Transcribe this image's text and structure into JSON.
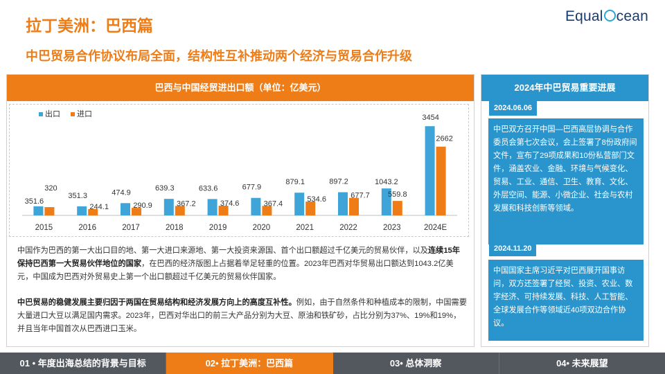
{
  "header": {
    "title": "拉丁美洲：巴西篇",
    "subtitle": "中巴贸易合作协议布局全面，结构性互补推动两个经济与贸易合作升级",
    "logo_part1": "Equal",
    "logo_part2": "cean"
  },
  "chart_panel": {
    "header": "巴西与中国经贸进出口额（单位：亿美元）"
  },
  "chart_data": {
    "type": "bar",
    "title": "巴西与中国经贸进出口额（单位：亿美元）",
    "categories": [
      "2015",
      "2016",
      "2017",
      "2018",
      "2019",
      "2020",
      "2021",
      "2022",
      "2023",
      "2024E"
    ],
    "series": [
      {
        "name": "出口",
        "color": "#3fa4d8",
        "values": [
          351.6,
          351.3,
          474.9,
          639.3,
          633.6,
          677.9,
          879.1,
          897.2,
          1043.2,
          3454
        ]
      },
      {
        "name": "进口",
        "color": "#ee7d17",
        "values": [
          320,
          244.1,
          290.9,
          367.2,
          374.6,
          367.4,
          534.6,
          677.7,
          559.8,
          2662
        ]
      }
    ],
    "labels": {
      "export": [
        "351.6",
        "351.3",
        "474.9",
        "639.3",
        "633.6",
        "677.9",
        "879.1",
        "897.2",
        "1043.2",
        "3454"
      ],
      "import": [
        "320",
        "244.1",
        "290.9",
        "367.2",
        "374.6",
        "367.4",
        "534.6",
        "677.7",
        "559.8",
        "2662"
      ]
    },
    "legend_position": "top-left",
    "ylim": [
      0,
      3700
    ],
    "grid": false
  },
  "paragraphs": {
    "p1_a": "中国作为巴西的第一大出口目的地、第一大进口来源地、第一大投资来源国、首个出口额超过千亿美元的贸易伙伴，以及",
    "p1_b": "连续15年保持巴西第一大贸易伙伴地位的国家",
    "p1_c": "，在巴西的经济版图上占据着举足轻重的位置。2023年巴西对华贸易出口额达到1043.2亿美元，中国成为巴西对外贸易史上第一个出口额超过千亿美元的贸易伙伴国家。",
    "p2_a": "中巴贸易的稳健发展主要归因于两国在贸易结构和经济发展方向上的高度互补性。",
    "p2_b": "例如，由于自然条件和种植成本的限制，中国需要大量进口大豆以满足国内需求。2023年，巴西对华出口的前三大产品分别为大豆、原油和铁矿砂，占比分别为37%、19%和19%，并且当年中国首次从巴西进口玉米。"
  },
  "right_panel": {
    "header": "2024年中巴贸易重要进展",
    "date1": "2024.06.06",
    "text1": "中巴双方召开中国—巴西高层协调与合作委员会第七次会议，会上签署了8份政府间文件，宣布了29项成果和10份私营部门文件，涵盖农业、金融、环境与气候变化、贸易、工业、通信、卫生、教育、文化、外层空间、能源、小微企业、社会与农村发展和科技创新等领域。",
    "date2": "2024.11.20",
    "text2": "中国国家主席习近平对巴西展开国事访问，双方还签署了经贸、投资、农业、数字经济、可持续发展、科技、人工智能、全球发展合作等领域近40项双边合作协议。"
  },
  "footer": {
    "tabs": [
      "01 • 年度出海总结的背景与目标",
      "02• 拉丁美洲：巴西篇",
      "03• 总体洞察",
      "04• 未来展望"
    ]
  }
}
